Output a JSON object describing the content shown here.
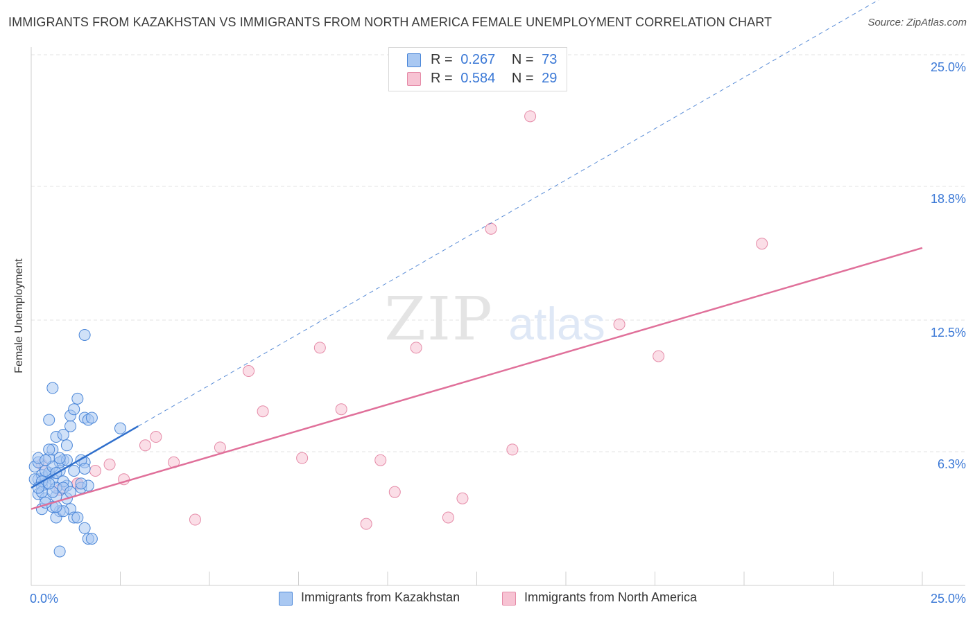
{
  "header": {
    "title": "IMMIGRANTS FROM KAZAKHSTAN VS IMMIGRANTS FROM NORTH AMERICA FEMALE UNEMPLOYMENT CORRELATION CHART",
    "source": "Source: ZipAtlas.com"
  },
  "watermark": {
    "zip": "ZIP",
    "atlas": "atlas"
  },
  "legend": {
    "r_label": "R =",
    "n_label": "N =",
    "rows": [
      {
        "r": "0.267",
        "n": "73"
      },
      {
        "r": "0.584",
        "n": "29"
      }
    ]
  },
  "colors": {
    "kazakhstan_fill": "#a9c8f2",
    "kazakhstan_stroke": "#4a86d8",
    "kazakhstan_line": "#2f6fcc",
    "north_america_fill": "#f7c3d3",
    "north_america_stroke": "#e58aa7",
    "north_america_line": "#e0709a",
    "tick_label": "#3a78d6"
  },
  "chart_data": {
    "type": "scatter",
    "title": "IMMIGRANTS FROM KAZAKHSTAN VS IMMIGRANTS FROM NORTH AMERICA FEMALE UNEMPLOYMENT CORRELATION CHART",
    "xlabel": "",
    "ylabel": "Female Unemployment",
    "xlim": [
      0,
      25
    ],
    "ylim": [
      0,
      25
    ],
    "x_tick_labels": [
      "0.0%",
      "25.0%"
    ],
    "y_ticks": [
      6.3,
      12.5,
      18.8,
      25.0
    ],
    "y_tick_labels": [
      "6.3%",
      "12.5%",
      "18.8%",
      "25.0%"
    ],
    "grid": true,
    "series": [
      {
        "name": "Immigrants from Kazakhstan",
        "r": 0.267,
        "n": 73,
        "trend": {
          "x0": 0.0,
          "y0": 4.6,
          "x1": 3.0,
          "y1": 7.5,
          "style": "solid",
          "extend_to_x": 23.8,
          "extend_style": "dashed"
        },
        "points": [
          [
            0.1,
            5.6
          ],
          [
            0.2,
            5.0
          ],
          [
            0.3,
            4.7
          ],
          [
            0.4,
            5.1
          ],
          [
            0.2,
            4.3
          ],
          [
            0.5,
            5.2
          ],
          [
            0.6,
            5.0
          ],
          [
            0.3,
            3.6
          ],
          [
            0.7,
            4.2
          ],
          [
            0.4,
            4.8
          ],
          [
            0.8,
            5.4
          ],
          [
            0.5,
            6.0
          ],
          [
            0.9,
            5.9
          ],
          [
            0.6,
            6.4
          ],
          [
            1.0,
            4.7
          ],
          [
            0.8,
            3.5
          ],
          [
            1.1,
            3.6
          ],
          [
            0.2,
            5.8
          ],
          [
            0.6,
            3.7
          ],
          [
            0.9,
            4.9
          ],
          [
            0.3,
            5.2
          ],
          [
            0.4,
            4.1
          ],
          [
            1.2,
            5.4
          ],
          [
            1.5,
            5.8
          ],
          [
            1.4,
            4.6
          ],
          [
            0.7,
            3.2
          ],
          [
            1.2,
            3.2
          ],
          [
            1.0,
            4.1
          ],
          [
            0.1,
            5.0
          ],
          [
            0.5,
            5.3
          ],
          [
            0.5,
            7.8
          ],
          [
            0.6,
            9.3
          ],
          [
            0.7,
            7.0
          ],
          [
            0.9,
            7.1
          ],
          [
            1.1,
            7.5
          ],
          [
            1.1,
            8.0
          ],
          [
            1.2,
            8.3
          ],
          [
            1.3,
            8.8
          ],
          [
            1.5,
            7.9
          ],
          [
            1.6,
            7.8
          ],
          [
            1.7,
            7.9
          ],
          [
            1.5,
            11.8
          ],
          [
            2.5,
            7.4
          ],
          [
            1.6,
            4.7
          ],
          [
            1.4,
            4.8
          ],
          [
            1.5,
            2.7
          ],
          [
            1.6,
            2.2
          ],
          [
            1.7,
            2.2
          ],
          [
            0.8,
            1.6
          ],
          [
            1.4,
            5.9
          ],
          [
            1.5,
            5.5
          ],
          [
            1.3,
            3.2
          ],
          [
            0.7,
            4.6
          ],
          [
            0.3,
            4.4
          ],
          [
            0.8,
            5.8
          ],
          [
            1.0,
            5.9
          ],
          [
            0.6,
            4.4
          ],
          [
            0.9,
            3.5
          ],
          [
            0.4,
            5.4
          ],
          [
            0.2,
            6.0
          ],
          [
            0.5,
            6.4
          ],
          [
            0.8,
            6.0
          ],
          [
            1.0,
            6.6
          ],
          [
            0.3,
            4.9
          ],
          [
            0.4,
            3.9
          ],
          [
            0.6,
            5.6
          ],
          [
            0.7,
            5.3
          ],
          [
            0.9,
            4.6
          ],
          [
            0.2,
            4.6
          ],
          [
            0.4,
            5.9
          ],
          [
            0.5,
            4.8
          ],
          [
            0.7,
            3.7
          ],
          [
            1.1,
            4.4
          ]
        ]
      },
      {
        "name": "Immigrants from North America",
        "r": 0.584,
        "n": 29,
        "trend": {
          "x0": 0.0,
          "y0": 3.6,
          "x1": 25.0,
          "y1": 15.9,
          "style": "solid"
        },
        "points": [
          [
            0.3,
            5.7
          ],
          [
            0.8,
            4.5
          ],
          [
            1.3,
            4.8
          ],
          [
            1.8,
            5.4
          ],
          [
            2.2,
            5.7
          ],
          [
            2.6,
            5.0
          ],
          [
            3.2,
            6.6
          ],
          [
            3.5,
            7.0
          ],
          [
            4.0,
            5.8
          ],
          [
            4.6,
            3.1
          ],
          [
            5.3,
            6.5
          ],
          [
            6.1,
            10.1
          ],
          [
            6.5,
            8.2
          ],
          [
            7.6,
            6.0
          ],
          [
            8.1,
            11.2
          ],
          [
            8.7,
            8.3
          ],
          [
            9.4,
            2.9
          ],
          [
            9.8,
            5.9
          ],
          [
            10.2,
            4.4
          ],
          [
            10.8,
            11.2
          ],
          [
            11.7,
            3.2
          ],
          [
            12.1,
            4.1
          ],
          [
            12.9,
            16.8
          ],
          [
            13.5,
            6.4
          ],
          [
            14.0,
            22.1
          ],
          [
            16.5,
            12.3
          ],
          [
            17.6,
            10.8
          ],
          [
            20.5,
            16.1
          ],
          [
            1.3,
            4.8
          ]
        ]
      }
    ]
  },
  "bottom_legend": [
    {
      "label": "Immigrants from Kazakhstan"
    },
    {
      "label": "Immigrants from North America"
    }
  ]
}
